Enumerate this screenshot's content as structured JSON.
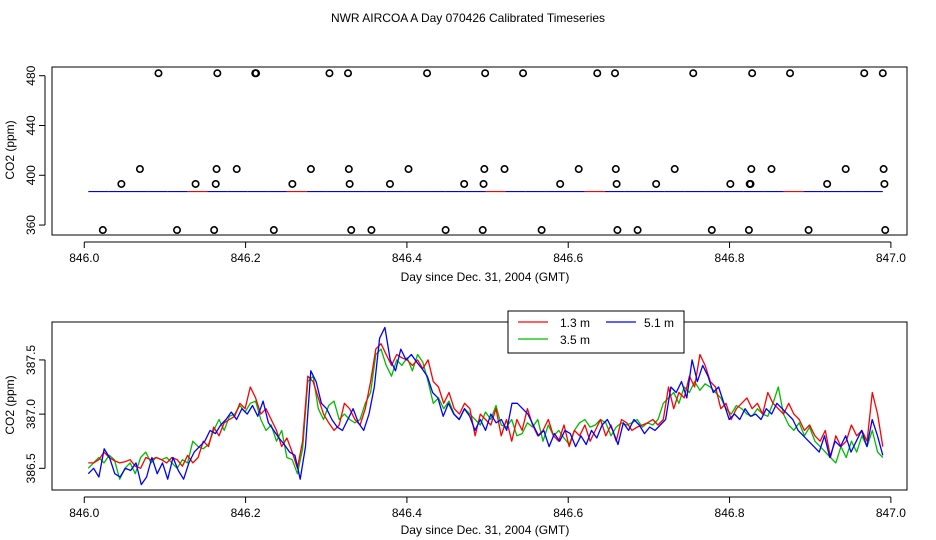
{
  "page_title": "NWR AIRCOA A  Day 070426  Calibrated Timeseries",
  "chart_data": [
    {
      "type": "scatter",
      "name": "top-panel",
      "title": "",
      "xlabel": "Day since Dec. 31, 2004 (GMT)",
      "ylabel": "CO2 (ppm)",
      "xlim": [
        845.96,
        847.02
      ],
      "ylim": [
        352,
        487
      ],
      "xticks": [
        846.0,
        846.2,
        846.4,
        846.6,
        846.8,
        847.0
      ],
      "xtick_labels": [
        "846.0",
        "846.2",
        "846.4",
        "846.6",
        "846.8",
        "847.0"
      ],
      "yticks": [
        360,
        400,
        440,
        480
      ],
      "ytick_labels": [
        "360",
        "400",
        "440",
        "480"
      ],
      "points": [
        {
          "x": 846.023,
          "y": 356
        },
        {
          "x": 846.046,
          "y": 393
        },
        {
          "x": 846.069,
          "y": 405
        },
        {
          "x": 846.092,
          "y": 482
        },
        {
          "x": 846.115,
          "y": 356
        },
        {
          "x": 846.138,
          "y": 393
        },
        {
          "x": 846.161,
          "y": 356
        },
        {
          "x": 846.163,
          "y": 393
        },
        {
          "x": 846.164,
          "y": 405
        },
        {
          "x": 846.165,
          "y": 482
        },
        {
          "x": 846.189,
          "y": 405
        },
        {
          "x": 846.212,
          "y": 482
        },
        {
          "x": 846.213,
          "y": 482
        },
        {
          "x": 846.235,
          "y": 356
        },
        {
          "x": 846.258,
          "y": 393
        },
        {
          "x": 846.281,
          "y": 405
        },
        {
          "x": 846.304,
          "y": 482
        },
        {
          "x": 846.327,
          "y": 482
        },
        {
          "x": 846.328,
          "y": 405
        },
        {
          "x": 846.329,
          "y": 393
        },
        {
          "x": 846.331,
          "y": 356
        },
        {
          "x": 846.356,
          "y": 356
        },
        {
          "x": 846.379,
          "y": 393
        },
        {
          "x": 846.402,
          "y": 405
        },
        {
          "x": 846.425,
          "y": 482
        },
        {
          "x": 846.448,
          "y": 356
        },
        {
          "x": 846.471,
          "y": 393
        },
        {
          "x": 846.494,
          "y": 356
        },
        {
          "x": 846.495,
          "y": 393
        },
        {
          "x": 846.496,
          "y": 405
        },
        {
          "x": 846.497,
          "y": 482
        },
        {
          "x": 846.521,
          "y": 405
        },
        {
          "x": 846.544,
          "y": 482
        },
        {
          "x": 846.567,
          "y": 356
        },
        {
          "x": 846.59,
          "y": 393
        },
        {
          "x": 846.613,
          "y": 405
        },
        {
          "x": 846.636,
          "y": 482
        },
        {
          "x": 846.658,
          "y": 482
        },
        {
          "x": 846.659,
          "y": 405
        },
        {
          "x": 846.66,
          "y": 393
        },
        {
          "x": 846.661,
          "y": 356
        },
        {
          "x": 846.686,
          "y": 356
        },
        {
          "x": 846.709,
          "y": 393
        },
        {
          "x": 846.732,
          "y": 405
        },
        {
          "x": 846.755,
          "y": 482
        },
        {
          "x": 846.778,
          "y": 356
        },
        {
          "x": 846.801,
          "y": 393
        },
        {
          "x": 846.824,
          "y": 356
        },
        {
          "x": 846.825,
          "y": 393
        },
        {
          "x": 846.826,
          "y": 393
        },
        {
          "x": 846.827,
          "y": 405
        },
        {
          "x": 846.828,
          "y": 482
        },
        {
          "x": 846.852,
          "y": 405
        },
        {
          "x": 846.875,
          "y": 482
        },
        {
          "x": 846.898,
          "y": 356
        },
        {
          "x": 846.921,
          "y": 393
        },
        {
          "x": 846.944,
          "y": 405
        },
        {
          "x": 846.967,
          "y": 482
        },
        {
          "x": 846.99,
          "y": 482
        },
        {
          "x": 846.991,
          "y": 405
        },
        {
          "x": 846.992,
          "y": 393
        },
        {
          "x": 846.993,
          "y": 356
        }
      ],
      "baseline": {
        "x_start": 846.005,
        "x_end": 846.99,
        "y": 386.9,
        "colors": [
          "#ff0000",
          "#00bb00",
          "#0000ff"
        ]
      }
    },
    {
      "type": "line",
      "name": "bottom-panel",
      "title": "",
      "xlabel": "Day since Dec. 31, 2004 (GMT)",
      "ylabel": "CO2 (ppm)",
      "xlim": [
        845.96,
        847.02
      ],
      "ylim": [
        386.3,
        387.85
      ],
      "xticks": [
        846.0,
        846.2,
        846.4,
        846.6,
        846.8,
        847.0
      ],
      "xtick_labels": [
        "846.0",
        "846.2",
        "846.4",
        "846.6",
        "846.8",
        "847.0"
      ],
      "yticks": [
        386.5,
        387.0,
        387.5
      ],
      "ytick_labels": [
        "386.5",
        "387.0",
        "387.5"
      ],
      "x_range": [
        846.005,
        846.99
      ],
      "legend_position": "top-center",
      "series": [
        {
          "name": "1.3 m",
          "color": "#ff0000",
          "values": [
            386.55,
            386.55,
            386.58,
            386.65,
            386.6,
            386.57,
            386.55,
            386.56,
            386.58,
            386.52,
            386.5,
            386.6,
            386.58,
            386.6,
            386.58,
            386.55,
            386.6,
            386.58,
            386.52,
            386.62,
            386.55,
            386.6,
            386.75,
            386.7,
            386.88,
            386.8,
            386.92,
            386.95,
            386.98,
            387.1,
            387.05,
            387.25,
            387.15,
            387.0,
            387.05,
            386.95,
            386.85,
            386.7,
            386.78,
            386.65,
            386.5,
            386.75,
            387.35,
            387.3,
            387.15,
            387.0,
            386.92,
            386.85,
            386.9,
            387.1,
            387.05,
            386.95,
            386.9,
            387.05,
            387.3,
            387.6,
            387.65,
            387.55,
            387.45,
            387.55,
            387.52,
            387.5,
            387.45,
            387.5,
            387.42,
            387.5,
            387.3,
            387.25,
            387.1,
            387.2,
            387.05,
            387.0,
            387.1,
            387.05,
            386.8,
            387.0,
            386.95,
            386.9,
            387.05,
            386.8,
            386.95,
            386.75,
            386.95,
            386.85,
            387.05,
            386.9,
            386.8,
            386.85,
            386.95,
            386.8,
            386.75,
            386.9,
            386.7,
            386.85,
            386.8,
            386.9,
            386.75,
            386.85,
            386.95,
            386.8,
            386.9,
            386.75,
            386.95,
            386.92,
            386.85,
            386.88,
            386.9,
            386.92,
            386.95,
            386.9,
            386.95,
            387.25,
            387.05,
            387.2,
            387.15,
            387.35,
            387.25,
            387.55,
            387.45,
            387.3,
            387.25,
            387.05,
            387.1,
            386.95,
            387.05,
            387.1,
            387.15,
            387.05,
            387.1,
            387.0,
            387.2,
            387.1,
            387.05,
            387.0,
            387.1,
            387.0,
            386.95,
            386.85,
            386.9,
            386.8,
            386.75,
            386.85,
            386.6,
            386.8,
            386.7,
            386.75,
            386.9,
            386.8,
            386.85,
            386.75,
            387.2,
            387.0,
            386.7
          ]
        },
        {
          "name": "3.5 m",
          "color": "#00bb00",
          "values": [
            386.5,
            386.55,
            386.6,
            386.55,
            386.62,
            386.58,
            386.4,
            386.5,
            386.55,
            386.45,
            386.6,
            386.65,
            386.55,
            386.6,
            386.58,
            386.6,
            386.55,
            386.5,
            386.58,
            386.55,
            386.75,
            386.7,
            386.68,
            386.72,
            386.85,
            386.95,
            386.85,
            386.98,
            387.0,
            387.08,
            387.02,
            387.1,
            387.12,
            386.95,
            386.85,
            386.9,
            386.75,
            386.85,
            386.6,
            386.58,
            386.45,
            386.68,
            387.3,
            387.35,
            387.05,
            386.95,
            387.08,
            387.12,
            386.95,
            387.0,
            386.95,
            386.92,
            386.95,
            387.1,
            387.2,
            387.55,
            387.6,
            387.45,
            387.35,
            387.5,
            387.45,
            387.52,
            387.4,
            387.55,
            387.48,
            387.3,
            387.1,
            387.15,
            387.05,
            387.12,
            387.0,
            386.95,
            387.05,
            387.0,
            386.95,
            386.9,
            387.02,
            386.95,
            387.08,
            386.9,
            386.88,
            386.95,
            386.8,
            386.82,
            386.92,
            386.88,
            386.95,
            386.75,
            386.9,
            386.8,
            386.85,
            386.78,
            386.72,
            386.85,
            386.92,
            386.95,
            386.88,
            386.9,
            386.95,
            386.92,
            386.8,
            386.88,
            386.92,
            386.9,
            386.92,
            386.95,
            386.88,
            386.92,
            386.9,
            386.95,
            387.1,
            387.15,
            387.2,
            387.1,
            387.25,
            387.2,
            387.3,
            387.22,
            387.28,
            387.25,
            387.2,
            387.15,
            387.05,
            387.0,
            387.08,
            387.05,
            387.0,
            386.98,
            387.05,
            387.0,
            386.98,
            387.1,
            387.25,
            387.0,
            386.9,
            386.85,
            386.92,
            386.8,
            386.88,
            386.75,
            386.7,
            386.65,
            386.6,
            386.55,
            386.7,
            386.6,
            386.75,
            386.65,
            386.8,
            386.7,
            386.85,
            386.65,
            386.6
          ]
        },
        {
          "name": "5.1 m",
          "color": "#0000ff",
          "values": [
            386.45,
            386.5,
            386.42,
            386.68,
            386.6,
            386.45,
            386.42,
            386.5,
            386.48,
            386.55,
            386.35,
            386.42,
            386.6,
            386.45,
            386.55,
            386.4,
            386.6,
            386.48,
            386.4,
            386.55,
            386.65,
            386.7,
            386.75,
            386.85,
            386.82,
            386.9,
            386.95,
            387.02,
            386.95,
            387.05,
            387.0,
            387.08,
            386.98,
            387.12,
            386.92,
            386.85,
            386.78,
            386.72,
            386.65,
            386.62,
            386.4,
            386.7,
            387.4,
            387.3,
            387.1,
            387.05,
            386.95,
            386.88,
            386.85,
            386.95,
            387.05,
            386.92,
            386.85,
            387.0,
            387.25,
            387.7,
            387.8,
            387.5,
            387.4,
            387.6,
            387.5,
            387.55,
            387.48,
            387.42,
            387.35,
            387.2,
            387.15,
            386.98,
            387.1,
            387.0,
            386.95,
            387.05,
            386.98,
            386.85,
            386.95,
            386.85,
            387.0,
            386.92,
            386.95,
            386.85,
            387.1,
            387.1,
            387.05,
            387.0,
            386.9,
            386.8,
            386.85,
            386.7,
            386.82,
            386.75,
            386.85,
            386.82,
            386.7,
            386.8,
            386.72,
            386.85,
            386.78,
            386.9,
            386.95,
            386.85,
            386.72,
            386.92,
            386.85,
            386.95,
            386.9,
            386.82,
            386.88,
            386.85,
            386.9,
            386.95,
            387.25,
            387.2,
            387.3,
            387.15,
            387.5,
            387.3,
            387.45,
            387.35,
            387.2,
            387.25,
            387.1,
            386.95,
            387.0,
            386.95,
            387.05,
            386.98,
            387.0,
            386.95,
            387.05,
            387.0,
            387.1,
            387.05,
            387.0,
            386.95,
            386.85,
            386.8,
            386.75,
            386.7,
            386.65,
            386.8,
            386.6,
            386.75,
            386.7,
            386.8,
            386.65,
            386.75,
            386.85,
            386.7,
            386.95,
            386.8,
            386.62
          ]
        }
      ]
    }
  ]
}
